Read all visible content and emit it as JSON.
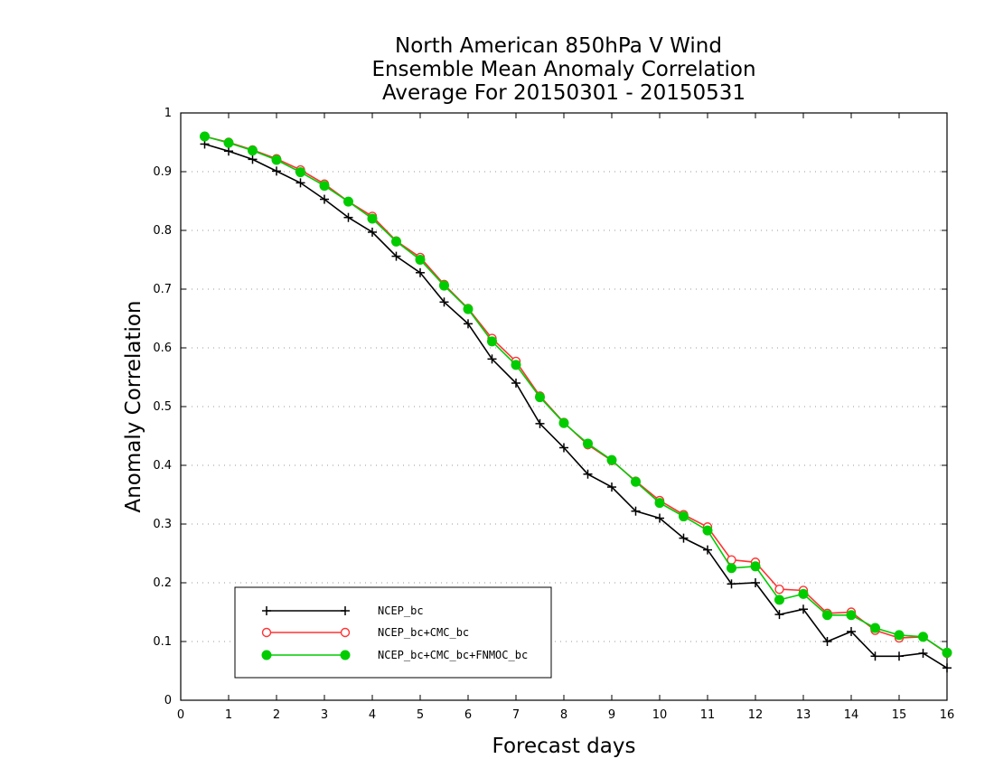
{
  "chart_data": {
    "type": "line",
    "title_lines": [
      "North American 850hPa V Wind",
      "Ensemble Mean Anomaly Correlation",
      "Average For 20150301 - 20150531"
    ],
    "xlabel": "Forecast days",
    "ylabel": "Anomaly Correlation",
    "xlim": [
      0,
      16
    ],
    "ylim": [
      0,
      1
    ],
    "x_ticks": [
      "0",
      "1",
      "2",
      "3",
      "4",
      "5",
      "6",
      "7",
      "8",
      "9",
      "10",
      "11",
      "12",
      "13",
      "14",
      "15",
      "16"
    ],
    "y_ticks": [
      "0",
      "0.1",
      "0.2",
      "0.3",
      "0.4",
      "0.5",
      "0.6",
      "0.7",
      "0.8",
      "0.9",
      "1"
    ],
    "grid": "horizontal dotted",
    "legend_position": "lower-left",
    "x": [
      0.5,
      1,
      1.5,
      2,
      2.5,
      3,
      3.5,
      4,
      4.5,
      5,
      5.5,
      6,
      6.5,
      7,
      7.5,
      8,
      8.5,
      9,
      9.5,
      10,
      10.5,
      11,
      11.5,
      12,
      12.5,
      13,
      13.5,
      14,
      14.5,
      15,
      15.5,
      16
    ],
    "series": [
      {
        "name": "NCEP_bc",
        "color": "#000000",
        "marker": "plus",
        "values": [
          0.947,
          0.935,
          0.921,
          0.901,
          0.881,
          0.853,
          0.822,
          0.797,
          0.756,
          0.728,
          0.678,
          0.641,
          0.581,
          0.54,
          0.471,
          0.43,
          0.385,
          0.363,
          0.322,
          0.31,
          0.276,
          0.256,
          0.198,
          0.2,
          0.146,
          0.155,
          0.1,
          0.117,
          0.075,
          0.075,
          0.08,
          0.055
        ]
      },
      {
        "name": "NCEP_bc+CMC_bc",
        "color": "#ff3333",
        "marker": "open-circle",
        "values": [
          0.96,
          0.95,
          0.937,
          0.922,
          0.903,
          0.879,
          0.849,
          0.824,
          0.782,
          0.754,
          0.708,
          0.667,
          0.616,
          0.577,
          0.518,
          0.473,
          0.435,
          0.408,
          0.373,
          0.34,
          0.316,
          0.295,
          0.239,
          0.235,
          0.189,
          0.187,
          0.148,
          0.15,
          0.119,
          0.106,
          0.108,
          0.08
        ]
      },
      {
        "name": "NCEP_bc+CMC_bc+FNMOC_bc",
        "color": "#00cc00",
        "marker": "filled-circle",
        "values": [
          0.96,
          0.949,
          0.936,
          0.92,
          0.899,
          0.876,
          0.849,
          0.82,
          0.781,
          0.75,
          0.706,
          0.666,
          0.611,
          0.571,
          0.516,
          0.472,
          0.437,
          0.409,
          0.372,
          0.336,
          0.313,
          0.289,
          0.225,
          0.228,
          0.171,
          0.181,
          0.145,
          0.145,
          0.123,
          0.111,
          0.108,
          0.081
        ]
      }
    ]
  }
}
